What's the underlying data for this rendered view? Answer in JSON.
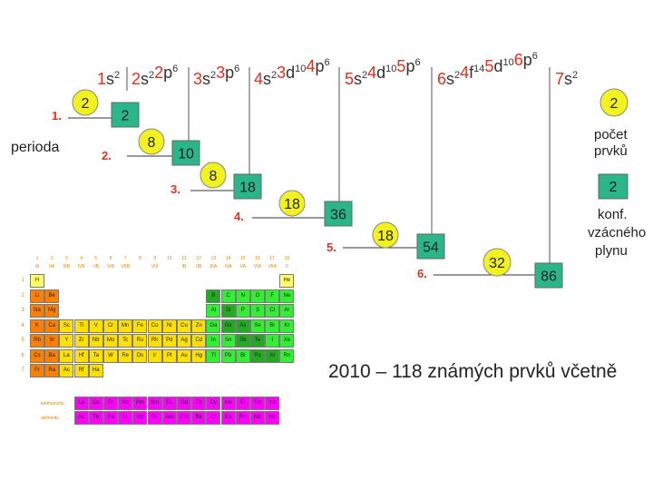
{
  "configs": [
    {
      "text": "1s",
      "sup": "2"
    },
    {
      "text": "2s",
      "sup": "2"
    },
    {
      "text": "2p",
      "sup": "6"
    },
    {
      "text": "3s",
      "sup": "2"
    },
    {
      "text": "3p",
      "sup": "6"
    },
    {
      "text": "4s",
      "sup": "2"
    },
    {
      "text": "3d",
      "sup": "10"
    },
    {
      "text": "4p",
      "sup": "6"
    },
    {
      "text": "5s",
      "sup": "2"
    },
    {
      "text": "4d",
      "sup": "10"
    },
    {
      "text": "5p",
      "sup": "6"
    },
    {
      "text": "6s",
      "sup": "2"
    },
    {
      "text": "4f",
      "sup": "14"
    },
    {
      "text": "5d",
      "sup": "10"
    },
    {
      "text": "6p",
      "sup": "6"
    },
    {
      "text": "7s",
      "sup": "2"
    }
  ],
  "periods": [
    {
      "label": "1.",
      "count": "2",
      "total": "2"
    },
    {
      "label": "2.",
      "count": "8",
      "total": "10"
    },
    {
      "label": "3.",
      "count": "8",
      "total": "18"
    },
    {
      "label": "4.",
      "count": "18",
      "total": "36"
    },
    {
      "label": "5.",
      "count": "18",
      "total": "54"
    },
    {
      "label": "6.",
      "count": "32",
      "total": "86"
    }
  ],
  "perioda_label": "perioda",
  "legend": {
    "count_value": "2",
    "count_label_1": "počet",
    "count_label_2": "prvků",
    "noble_value": "2",
    "noble_label_1": "konf.",
    "noble_label_2": "vzácného",
    "noble_label_3": "plynu"
  },
  "footnote": "2010 – 118 známých prvků včetně",
  "colors": {
    "red_text": "#e0301e",
    "circle_fill": "#f2f21e",
    "box_fill": "#2bb58a",
    "line": "#000000",
    "s_block": "#ff8000",
    "d_block": "#ffe000",
    "p_block": "#33ee33",
    "p_dark": "#22aa22",
    "f_block": "#ff00ff",
    "h_he": "#ffff66"
  },
  "periodic_table": {
    "group_numbers": [
      "1",
      "2",
      "3",
      "4",
      "5",
      "6",
      "7",
      "8",
      "9",
      "10",
      "11",
      "12",
      "13",
      "14",
      "15",
      "16",
      "17",
      "18"
    ],
    "group_labels": [
      "IA",
      "IIA",
      "IIIB",
      "IVB",
      "VB",
      "VIB",
      "VIIB",
      "",
      "VIII",
      "",
      "IB",
      "IIB",
      "IIIA",
      "IVA",
      "VA",
      "VIA",
      "VIIA",
      "0"
    ],
    "period_numbers": [
      "1",
      "2",
      "3",
      "4",
      "5",
      "6",
      "7"
    ],
    "rows": [
      [
        "H",
        "",
        "",
        "",
        "",
        "",
        "",
        "",
        "",
        "",
        "",
        "",
        "",
        "",
        "",
        "",
        "",
        "He"
      ],
      [
        "Li",
        "Be",
        "",
        "",
        "",
        "",
        "",
        "",
        "",
        "",
        "",
        "",
        "B",
        "C",
        "N",
        "O",
        "F",
        "Ne"
      ],
      [
        "Na",
        "Mg",
        "",
        "",
        "",
        "",
        "",
        "",
        "",
        "",
        "",
        "",
        "Al",
        "Si",
        "P",
        "S",
        "Cl",
        "Ar"
      ],
      [
        "K",
        "Ca",
        "Sc",
        "Ti",
        "V",
        "Cr",
        "Mn",
        "Fe",
        "Co",
        "Ni",
        "Cu",
        "Zn",
        "Ga",
        "Ge",
        "As",
        "Se",
        "Br",
        "Kr"
      ],
      [
        "Rb",
        "Sr",
        "Y",
        "Zr",
        "Nb",
        "Mo",
        "Tc",
        "Ru",
        "Rh",
        "Pd",
        "Ag",
        "Cd",
        "In",
        "Sn",
        "Sb",
        "Te",
        "I",
        "Xe"
      ],
      [
        "Cs",
        "Ba",
        "La",
        "Hf",
        "Ta",
        "W",
        "Re",
        "Os",
        "Ir",
        "Pt",
        "Au",
        "Hg",
        "Tl",
        "Pb",
        "Bi",
        "Po",
        "At",
        "Rn"
      ],
      [
        "Fr",
        "Ra",
        "Ac",
        "Rf",
        "Ha",
        "",
        "",
        "",
        "",
        "",
        "",
        "",
        "",
        "",
        "",
        "",
        "",
        ""
      ]
    ],
    "lanthanides_label": "lanthanoidy",
    "actinides_label": "aktinoidy",
    "lanthanides": [
      "La",
      "Ce",
      "Pr",
      "Nd",
      "Pm",
      "Sm",
      "Eu",
      "Gd",
      "Tb",
      "Dy",
      "Ho",
      "Er",
      "Tm",
      "Yb"
    ],
    "actinides": [
      "Ac",
      "Th",
      "Pa",
      "U",
      "Np",
      "Pu",
      "Am",
      "Cm",
      "Bk",
      "Cf",
      "Es",
      "Fm",
      "Md",
      "No"
    ]
  }
}
